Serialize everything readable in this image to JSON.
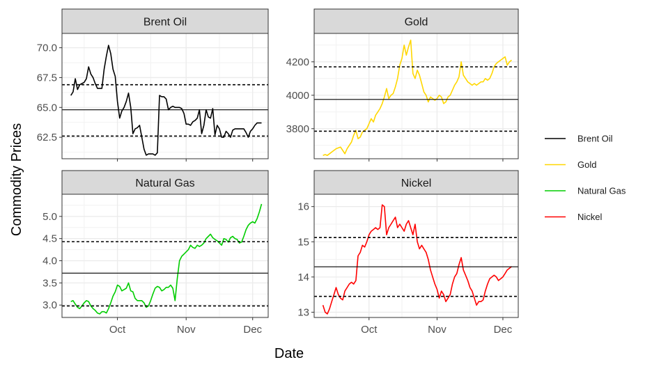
{
  "chart_data": {
    "type": "line",
    "xlabel": "Date",
    "ylabel": "Commodity Prices",
    "x_ticks": [
      "Oct",
      "Nov",
      "Dec"
    ],
    "grid": true,
    "legend_placement": "right",
    "legend": [
      {
        "name": "Brent Oil",
        "color": "#000000"
      },
      {
        "name": "Gold",
        "color": "#FFD700"
      },
      {
        "name": "Natural Gas",
        "color": "#00CD00"
      },
      {
        "name": "Nickel",
        "color": "#FF0000"
      }
    ],
    "panels": [
      {
        "title": "Brent Oil",
        "color": "#000000",
        "ylim": [
          60.7,
          71.2
        ],
        "y_ticks": [
          "62.5",
          "65.0",
          "67.5",
          "70.0"
        ],
        "x": [
          "2025-09-10",
          "2025-09-11",
          "2025-09-12",
          "2025-09-13",
          "2025-09-14",
          "2025-09-15",
          "2025-09-16",
          "2025-09-17",
          "2025-09-18",
          "2025-09-19",
          "2025-09-20",
          "2025-09-21",
          "2025-09-22",
          "2025-09-23",
          "2025-09-24",
          "2025-09-25",
          "2025-09-26",
          "2025-09-27",
          "2025-09-28",
          "2025-09-29",
          "2025-09-30",
          "2025-10-01",
          "2025-10-02",
          "2025-10-03",
          "2025-10-04",
          "2025-10-05",
          "2025-10-06",
          "2025-10-07",
          "2025-10-08",
          "2025-10-09",
          "2025-10-10",
          "2025-10-11",
          "2025-10-12",
          "2025-10-13",
          "2025-10-14",
          "2025-10-15",
          "2025-10-16",
          "2025-10-17",
          "2025-10-18",
          "2025-10-19",
          "2025-10-20",
          "2025-10-21",
          "2025-10-22",
          "2025-10-23",
          "2025-10-24",
          "2025-10-25",
          "2025-10-26",
          "2025-10-27",
          "2025-10-28",
          "2025-10-29",
          "2025-10-30",
          "2025-10-31",
          "2025-11-01",
          "2025-11-02",
          "2025-11-03",
          "2025-11-04",
          "2025-11-05",
          "2025-11-06",
          "2025-11-07",
          "2025-11-08",
          "2025-11-09",
          "2025-11-10",
          "2025-11-11",
          "2025-11-12",
          "2025-11-13",
          "2025-11-14",
          "2025-11-15",
          "2025-11-16",
          "2025-11-17",
          "2025-11-18",
          "2025-11-19",
          "2025-11-20",
          "2025-11-21",
          "2025-11-22",
          "2025-11-23",
          "2025-11-24",
          "2025-11-25",
          "2025-11-26",
          "2025-11-27",
          "2025-11-28",
          "2025-11-29",
          "2025-11-30",
          "2025-12-01",
          "2025-12-02",
          "2025-12-03",
          "2025-12-04",
          "2025-12-05"
        ],
        "values": [
          66.0,
          66.3,
          67.4,
          66.5,
          66.9,
          67.0,
          67.1,
          67.4,
          68.4,
          67.8,
          67.5,
          67.0,
          66.6,
          66.6,
          66.6,
          68.2,
          69.3,
          70.2,
          69.5,
          68.2,
          67.6,
          65.5,
          64.1,
          64.7,
          65.0,
          65.5,
          66.2,
          65.0,
          62.8,
          63.2,
          63.3,
          63.5,
          62.5,
          61.5,
          61.0,
          61.1,
          61.1,
          61.1,
          61.0,
          61.2,
          66.0,
          65.9,
          65.9,
          65.7,
          64.8,
          65.0,
          65.1,
          65.0,
          65.0,
          65.0,
          64.9,
          64.5,
          63.6,
          63.6,
          63.5,
          63.8,
          63.9,
          64.1,
          64.8,
          62.8,
          63.5,
          64.8,
          64.2,
          64.1,
          64.9,
          62.7,
          63.5,
          63.2,
          62.5,
          62.5,
          63.0,
          62.8,
          62.5,
          63.1,
          63.2,
          63.2,
          63.2,
          63.2,
          63.2,
          62.9,
          62.5,
          63.0,
          63.2,
          63.5,
          63.7,
          63.7,
          63.7
        ],
        "hlines": [
          {
            "value": 66.9,
            "style": "dashed"
          },
          {
            "value": 64.8,
            "style": "solid"
          },
          {
            "value": 62.6,
            "style": "dashed"
          }
        ]
      },
      {
        "title": "Gold",
        "color": "#FFD700",
        "ylim": [
          3620,
          4370
        ],
        "y_ticks": [
          "3800",
          "4000",
          "4200"
        ],
        "x": [
          "2025-09-10",
          "2025-09-11",
          "2025-09-12",
          "2025-09-13",
          "2025-09-14",
          "2025-09-15",
          "2025-09-16",
          "2025-09-17",
          "2025-09-18",
          "2025-09-19",
          "2025-09-20",
          "2025-09-21",
          "2025-09-22",
          "2025-09-23",
          "2025-09-24",
          "2025-09-25",
          "2025-09-26",
          "2025-09-27",
          "2025-09-28",
          "2025-09-29",
          "2025-09-30",
          "2025-10-01",
          "2025-10-02",
          "2025-10-03",
          "2025-10-04",
          "2025-10-05",
          "2025-10-06",
          "2025-10-07",
          "2025-10-08",
          "2025-10-09",
          "2025-10-10",
          "2025-10-11",
          "2025-10-12",
          "2025-10-13",
          "2025-10-14",
          "2025-10-15",
          "2025-10-16",
          "2025-10-17",
          "2025-10-18",
          "2025-10-19",
          "2025-10-20",
          "2025-10-21",
          "2025-10-22",
          "2025-10-23",
          "2025-10-24",
          "2025-10-25",
          "2025-10-26",
          "2025-10-27",
          "2025-10-28",
          "2025-10-29",
          "2025-10-30",
          "2025-10-31",
          "2025-11-01",
          "2025-11-02",
          "2025-11-03",
          "2025-11-04",
          "2025-11-05",
          "2025-11-06",
          "2025-11-07",
          "2025-11-08",
          "2025-11-09",
          "2025-11-10",
          "2025-11-11",
          "2025-11-12",
          "2025-11-13",
          "2025-11-14",
          "2025-11-15",
          "2025-11-16",
          "2025-11-17",
          "2025-11-18",
          "2025-11-19",
          "2025-11-20",
          "2025-11-21",
          "2025-11-22",
          "2025-11-23",
          "2025-11-24",
          "2025-11-25",
          "2025-11-26",
          "2025-11-27",
          "2025-11-28",
          "2025-11-29",
          "2025-11-30",
          "2025-12-01",
          "2025-12-02",
          "2025-12-03",
          "2025-12-04",
          "2025-12-05"
        ],
        "values": [
          3640,
          3645,
          3640,
          3650,
          3660,
          3670,
          3680,
          3685,
          3690,
          3670,
          3650,
          3680,
          3700,
          3720,
          3760,
          3790,
          3740,
          3750,
          3780,
          3790,
          3800,
          3830,
          3860,
          3840,
          3880,
          3900,
          3920,
          3950,
          3990,
          4040,
          3980,
          4000,
          4010,
          4050,
          4100,
          4180,
          4220,
          4300,
          4240,
          4290,
          4330,
          4130,
          4100,
          4150,
          4120,
          4070,
          4020,
          4000,
          3960,
          3990,
          3980,
          3970,
          3980,
          4000,
          3990,
          3950,
          3960,
          3990,
          4000,
          4030,
          4060,
          4080,
          4110,
          4200,
          4120,
          4100,
          4080,
          4070,
          4060,
          4070,
          4060,
          4070,
          4080,
          4080,
          4100,
          4090,
          4100,
          4130,
          4170,
          4190,
          4200,
          4210,
          4220,
          4230,
          4180,
          4200,
          4210
        ],
        "hlines": [
          {
            "value": 4170,
            "style": "dashed"
          },
          {
            "value": 3975,
            "style": "solid"
          },
          {
            "value": 3785,
            "style": "dashed"
          }
        ]
      },
      {
        "title": "Natural Gas",
        "color": "#00CD00",
        "ylim": [
          2.72,
          5.5
        ],
        "y_ticks": [
          "3.0",
          "3.5",
          "4.0",
          "4.5",
          "5.0"
        ],
        "x": [
          "2025-09-10",
          "2025-09-11",
          "2025-09-12",
          "2025-09-13",
          "2025-09-14",
          "2025-09-15",
          "2025-09-16",
          "2025-09-17",
          "2025-09-18",
          "2025-09-19",
          "2025-09-20",
          "2025-09-21",
          "2025-09-22",
          "2025-09-23",
          "2025-09-24",
          "2025-09-25",
          "2025-09-26",
          "2025-09-27",
          "2025-09-28",
          "2025-09-29",
          "2025-09-30",
          "2025-10-01",
          "2025-10-02",
          "2025-10-03",
          "2025-10-04",
          "2025-10-05",
          "2025-10-06",
          "2025-10-07",
          "2025-10-08",
          "2025-10-09",
          "2025-10-10",
          "2025-10-11",
          "2025-10-12",
          "2025-10-13",
          "2025-10-14",
          "2025-10-15",
          "2025-10-16",
          "2025-10-17",
          "2025-10-18",
          "2025-10-19",
          "2025-10-20",
          "2025-10-21",
          "2025-10-22",
          "2025-10-23",
          "2025-10-24",
          "2025-10-25",
          "2025-10-26",
          "2025-10-27",
          "2025-10-28",
          "2025-10-29",
          "2025-10-30",
          "2025-10-31",
          "2025-11-01",
          "2025-11-02",
          "2025-11-03",
          "2025-11-04",
          "2025-11-05",
          "2025-11-06",
          "2025-11-07",
          "2025-11-08",
          "2025-11-09",
          "2025-11-10",
          "2025-11-11",
          "2025-11-12",
          "2025-11-13",
          "2025-11-14",
          "2025-11-15",
          "2025-11-16",
          "2025-11-17",
          "2025-11-18",
          "2025-11-19",
          "2025-11-20",
          "2025-11-21",
          "2025-11-22",
          "2025-11-23",
          "2025-11-24",
          "2025-11-25",
          "2025-11-26",
          "2025-11-27",
          "2025-11-28",
          "2025-11-29",
          "2025-11-30",
          "2025-12-01",
          "2025-12-02",
          "2025-12-03",
          "2025-12-04",
          "2025-12-05"
        ],
        "values": [
          3.08,
          3.1,
          3.02,
          2.95,
          2.92,
          2.98,
          3.05,
          3.1,
          3.08,
          2.98,
          2.92,
          2.88,
          2.82,
          2.8,
          2.85,
          2.85,
          2.82,
          2.92,
          3.05,
          3.2,
          3.3,
          3.45,
          3.42,
          3.32,
          3.35,
          3.38,
          3.5,
          3.32,
          3.3,
          3.15,
          3.1,
          3.1,
          3.1,
          3.05,
          2.95,
          2.98,
          3.1,
          3.25,
          3.38,
          3.42,
          3.4,
          3.32,
          3.35,
          3.4,
          3.4,
          3.45,
          3.38,
          3.1,
          3.6,
          4.0,
          4.1,
          4.15,
          4.2,
          4.25,
          4.35,
          4.3,
          4.28,
          4.35,
          4.32,
          4.35,
          4.4,
          4.5,
          4.55,
          4.6,
          4.52,
          4.48,
          4.45,
          4.4,
          4.35,
          4.5,
          4.48,
          4.42,
          4.52,
          4.55,
          4.5,
          4.48,
          4.4,
          4.42,
          4.55,
          4.7,
          4.8,
          4.85,
          4.88,
          4.85,
          4.95,
          5.1,
          5.28
        ],
        "hlines": [
          {
            "value": 4.43,
            "style": "dashed"
          },
          {
            "value": 3.72,
            "style": "solid"
          },
          {
            "value": 2.98,
            "style": "dashed"
          }
        ]
      },
      {
        "title": "Nickel",
        "color": "#FF0000",
        "ylim": [
          12.85,
          16.35
        ],
        "y_ticks": [
          "13",
          "14",
          "15",
          "16"
        ],
        "x": [
          "2025-09-10",
          "2025-09-11",
          "2025-09-12",
          "2025-09-13",
          "2025-09-14",
          "2025-09-15",
          "2025-09-16",
          "2025-09-17",
          "2025-09-18",
          "2025-09-19",
          "2025-09-20",
          "2025-09-21",
          "2025-09-22",
          "2025-09-23",
          "2025-09-24",
          "2025-09-25",
          "2025-09-26",
          "2025-09-27",
          "2025-09-28",
          "2025-09-29",
          "2025-09-30",
          "2025-10-01",
          "2025-10-02",
          "2025-10-03",
          "2025-10-04",
          "2025-10-05",
          "2025-10-06",
          "2025-10-07",
          "2025-10-08",
          "2025-10-09",
          "2025-10-10",
          "2025-10-11",
          "2025-10-12",
          "2025-10-13",
          "2025-10-14",
          "2025-10-15",
          "2025-10-16",
          "2025-10-17",
          "2025-10-18",
          "2025-10-19",
          "2025-10-20",
          "2025-10-21",
          "2025-10-22",
          "2025-10-23",
          "2025-10-24",
          "2025-10-25",
          "2025-10-26",
          "2025-10-27",
          "2025-10-28",
          "2025-10-29",
          "2025-10-30",
          "2025-10-31",
          "2025-11-01",
          "2025-11-02",
          "2025-11-03",
          "2025-11-04",
          "2025-11-05",
          "2025-11-06",
          "2025-11-07",
          "2025-11-08",
          "2025-11-09",
          "2025-11-10",
          "2025-11-11",
          "2025-11-12",
          "2025-11-13",
          "2025-11-14",
          "2025-11-15",
          "2025-11-16",
          "2025-11-17",
          "2025-11-18",
          "2025-11-19",
          "2025-11-20",
          "2025-11-21",
          "2025-11-22",
          "2025-11-23",
          "2025-11-24",
          "2025-11-25",
          "2025-11-26",
          "2025-11-27",
          "2025-11-28",
          "2025-11-29",
          "2025-11-30",
          "2025-12-01",
          "2025-12-02",
          "2025-12-03",
          "2025-12-04",
          "2025-12-05"
        ],
        "values": [
          13.2,
          13.0,
          12.95,
          13.1,
          13.3,
          13.5,
          13.7,
          13.5,
          13.4,
          13.35,
          13.6,
          13.7,
          13.8,
          13.85,
          13.8,
          13.9,
          14.6,
          14.7,
          14.9,
          14.85,
          15.0,
          15.2,
          15.3,
          15.35,
          15.4,
          15.35,
          15.4,
          16.05,
          16.0,
          15.2,
          15.4,
          15.5,
          15.6,
          15.7,
          15.4,
          15.5,
          15.4,
          15.3,
          15.5,
          15.6,
          15.4,
          15.2,
          15.5,
          15.0,
          14.8,
          14.9,
          14.8,
          14.7,
          14.5,
          14.2,
          14.0,
          13.8,
          13.65,
          13.4,
          13.6,
          13.5,
          13.3,
          13.4,
          13.5,
          13.8,
          14.0,
          14.1,
          14.35,
          14.55,
          14.2,
          14.05,
          13.9,
          13.7,
          13.6,
          13.4,
          13.2,
          13.3,
          13.3,
          13.35,
          13.6,
          13.8,
          13.95,
          14.0,
          14.05,
          14.0,
          13.9,
          13.95,
          14.0,
          14.1,
          14.2,
          14.25,
          14.3
        ],
        "hlines": [
          {
            "value": 15.12,
            "style": "dashed"
          },
          {
            "value": 14.29,
            "style": "solid"
          },
          {
            "value": 13.45,
            "style": "dashed"
          }
        ]
      }
    ]
  }
}
